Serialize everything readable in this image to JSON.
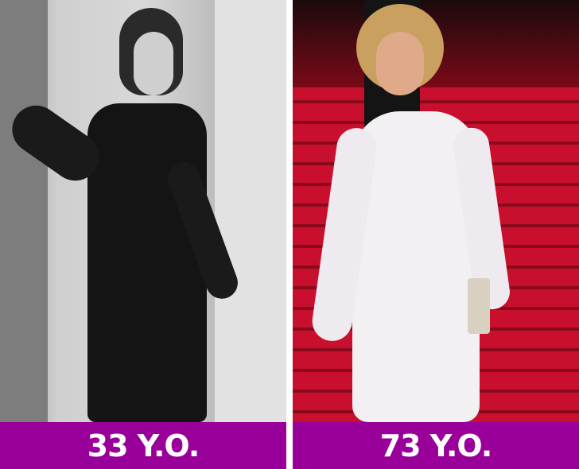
{
  "panels": [
    {
      "label": "33 Y.O.",
      "background_color": "#990099"
    },
    {
      "label": "73 Y.O.",
      "background_color": "#990099"
    }
  ]
}
